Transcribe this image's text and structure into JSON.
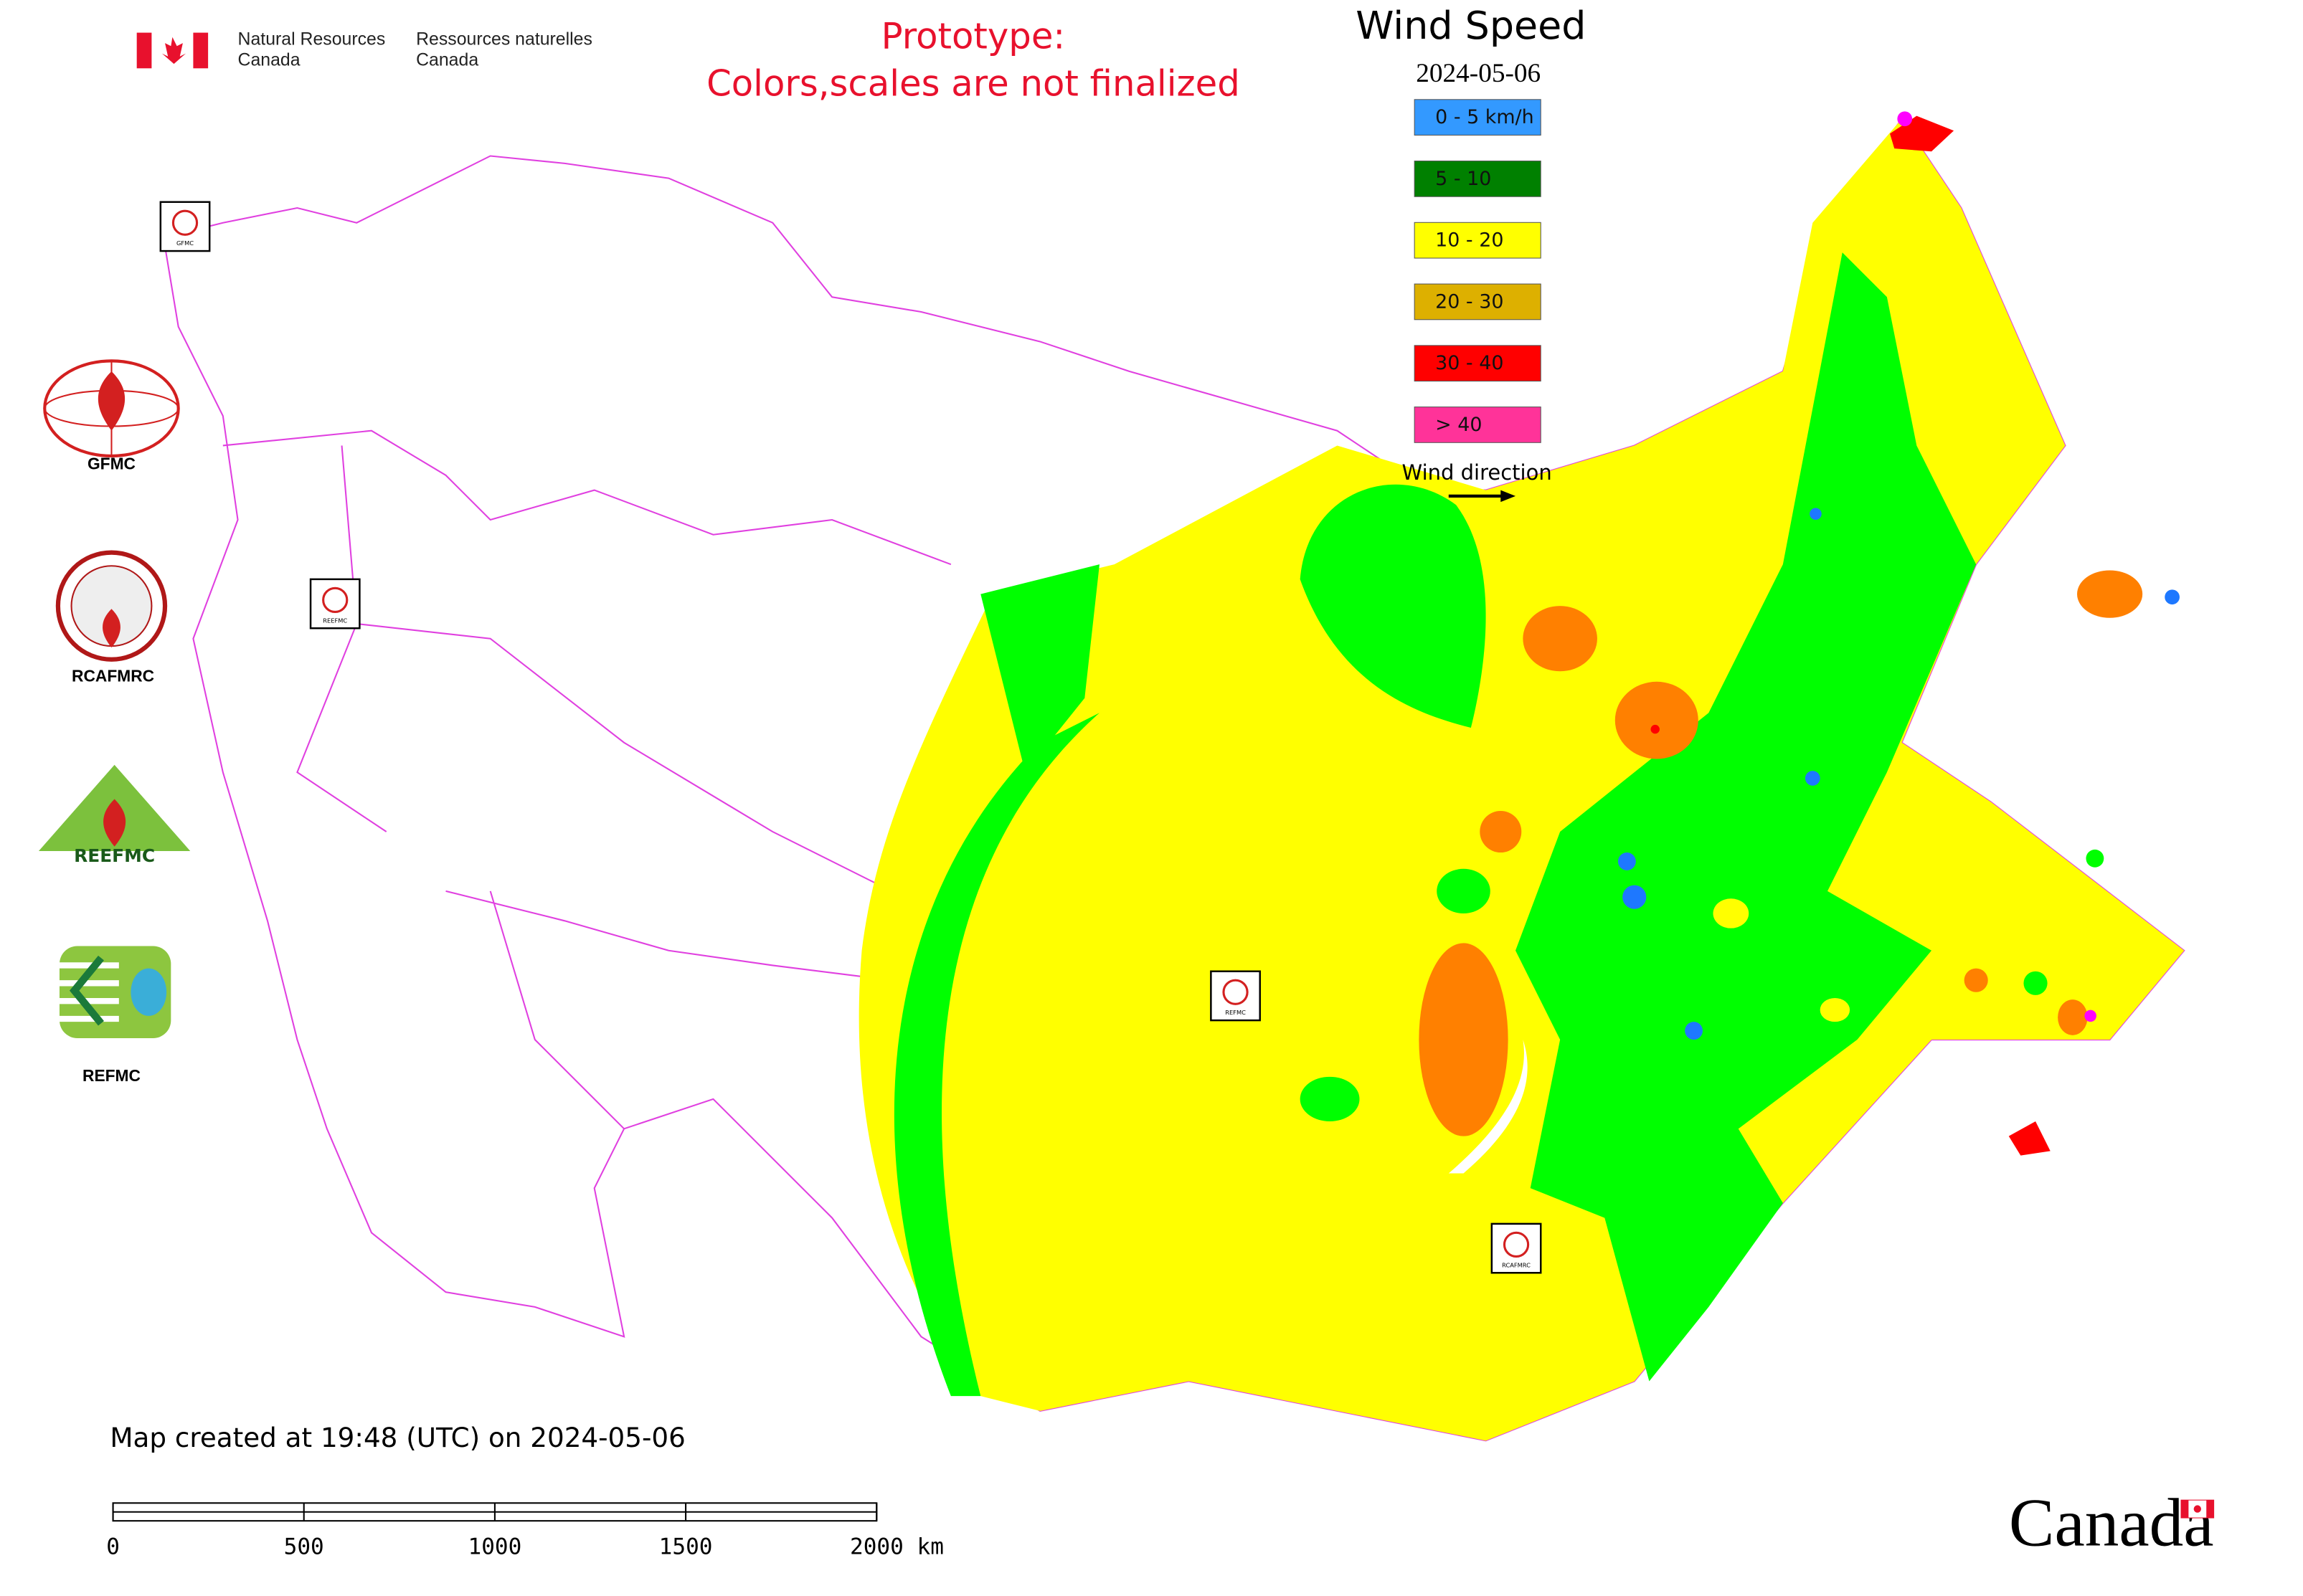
{
  "header": {
    "agency_en": [
      "Natural Resources",
      "Canada"
    ],
    "agency_fr": [
      "Ressources naturelles",
      "Canada"
    ],
    "prototype": [
      "Prototype:",
      "Colors,scales are not finalized"
    ]
  },
  "map": {
    "title": "Wind Speed",
    "date": "2024-05-06",
    "legend": [
      {
        "label": "0 - 5 km/h",
        "color": "#3399ff"
      },
      {
        "label": "5 - 10",
        "color": "#008000"
      },
      {
        "label": "10 - 20",
        "color": "#ffff00"
      },
      {
        "label": "20 - 30",
        "color": "#ddb000"
      },
      {
        "label": "30 - 40",
        "color": "#ff0000"
      },
      {
        "label": "> 40",
        "color": "#ff3399"
      }
    ],
    "wind_direction": "Wind direction",
    "region_colors": {
      "yellow": "#ffff00",
      "green": "#00ff00",
      "orange": "#ff8000",
      "blue": "#1e78ff",
      "red": "#ff0000",
      "magenta": "#ff00ff",
      "border": "#e040e0"
    }
  },
  "logos": [
    {
      "label": "GFMC"
    },
    {
      "label": "RCAFMRC"
    },
    {
      "label": "REEFMC"
    },
    {
      "label": "REFMC"
    }
  ],
  "map_markers": [
    "GFMC",
    "REEFMC",
    "REFMC",
    "RCAFMRC"
  ],
  "footer": {
    "created": "Map created at 19:48 (UTC) on 2024-05-06",
    "scale": {
      "ticks": [
        0,
        500,
        1000,
        1500,
        {
          "value": 2000,
          "label": "2000 km"
        }
      ]
    },
    "wordmark": "Canada"
  }
}
